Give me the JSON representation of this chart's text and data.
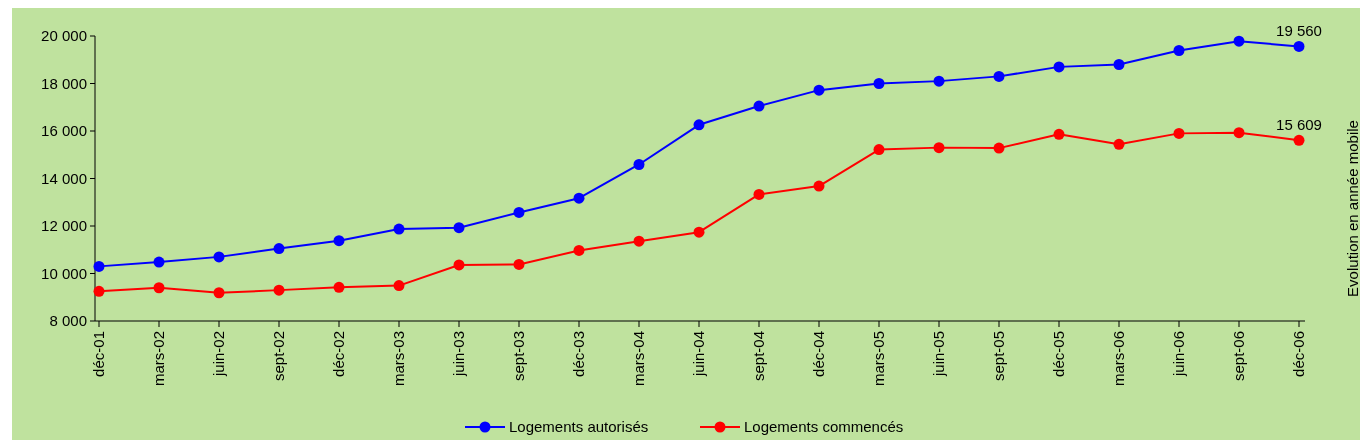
{
  "chart_data": {
    "type": "line",
    "y2label": "Evolution en année mobile",
    "categories": [
      "déc-01",
      "mars-02",
      "juin-02",
      "sept-02",
      "déc-02",
      "mars-03",
      "juin-03",
      "sept-03",
      "déc-03",
      "mars-04",
      "juin-04",
      "sept-04",
      "déc-04",
      "mars-05",
      "juin-05",
      "sept-05",
      "déc-05",
      "mars-06",
      "juin-06",
      "sept-06",
      "déc-06"
    ],
    "series": [
      {
        "name": "Logements autorisés",
        "color": "#0000ff",
        "values": [
          10300,
          10480,
          10700,
          11050,
          11380,
          11870,
          11930,
          12570,
          13170,
          14590,
          16260,
          17050,
          17720,
          18000,
          18100,
          18300,
          18700,
          18800,
          19390,
          19780,
          19560
        ],
        "value_labels": [
          null,
          null,
          null,
          null,
          null,
          null,
          null,
          null,
          null,
          null,
          null,
          null,
          null,
          null,
          null,
          null,
          null,
          null,
          null,
          null,
          "19 560"
        ]
      },
      {
        "name": "Logements commencés",
        "color": "#ff0000",
        "values": [
          9250,
          9400,
          9190,
          9300,
          9420,
          9490,
          10360,
          10380,
          10970,
          11360,
          11740,
          13330,
          13680,
          15220,
          15300,
          15280,
          15860,
          15440,
          15900,
          15930,
          15609
        ],
        "value_labels": [
          null,
          null,
          null,
          null,
          null,
          null,
          null,
          null,
          null,
          null,
          null,
          null,
          null,
          null,
          null,
          null,
          null,
          null,
          null,
          null,
          "15 609"
        ]
      }
    ],
    "ylim": [
      8000,
      20000
    ],
    "yticks": [
      {
        "value": 8000,
        "label": "8 000"
      },
      {
        "value": 10000,
        "label": "10 000"
      },
      {
        "value": 12000,
        "label": "12 000"
      },
      {
        "value": 14000,
        "label": "14 000"
      },
      {
        "value": 16000,
        "label": "16 000"
      },
      {
        "value": 18000,
        "label": "18 000"
      },
      {
        "value": 20000,
        "label": "20 000"
      }
    ],
    "grid": false,
    "legend": "bottom",
    "marker": "circle",
    "line_style": "solid"
  }
}
